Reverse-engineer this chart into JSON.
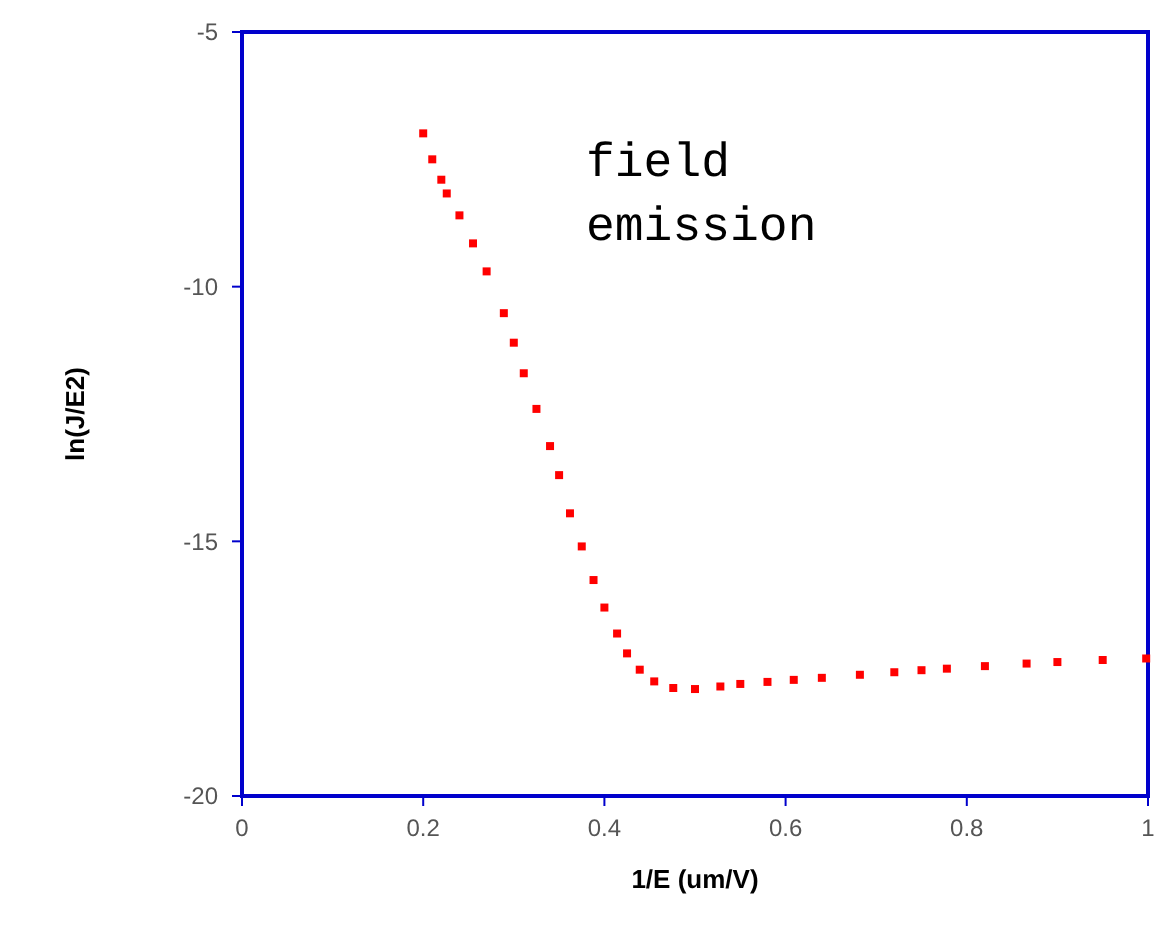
{
  "chart_data": {
    "type": "scatter",
    "xlabel": "1/E (um/V)",
    "ylabel": "ln(J/E2)",
    "annotations": [
      "field emission"
    ],
    "x": [
      0.2,
      0.21,
      0.22,
      0.226,
      0.24,
      0.255,
      0.27,
      0.289,
      0.3,
      0.311,
      0.325,
      0.34,
      0.35,
      0.362,
      0.375,
      0.388,
      0.4,
      0.414,
      0.425,
      0.439,
      0.455,
      0.476,
      0.5,
      0.528,
      0.55,
      0.58,
      0.609,
      0.64,
      0.682,
      0.72,
      0.75,
      0.778,
      0.82,
      0.866,
      0.9,
      0.95,
      0.998
    ],
    "series": [
      {
        "color": "#ff0000",
        "values": [
          -6.99,
          -7.5,
          -7.9,
          -8.17,
          -8.6,
          -9.15,
          -9.7,
          -10.52,
          -11.1,
          -11.7,
          -12.4,
          -13.13,
          -13.7,
          -14.45,
          -15.1,
          -15.76,
          -16.3,
          -16.81,
          -17.2,
          -17.52,
          -17.75,
          -17.88,
          -17.9,
          -17.85,
          -17.8,
          -17.76,
          -17.72,
          -17.68,
          -17.62,
          -17.57,
          -17.53,
          -17.5,
          -17.45,
          -17.4,
          -17.37,
          -17.33,
          -17.3
        ]
      }
    ],
    "xlim": [
      0,
      1
    ],
    "xticks": [
      0,
      0.2,
      0.4,
      0.6,
      0.8,
      1
    ],
    "ylim": [
      -20,
      -5
    ],
    "yticks": [
      -20,
      -15,
      -10,
      -5
    ],
    "grid": false,
    "marker": "square"
  }
}
